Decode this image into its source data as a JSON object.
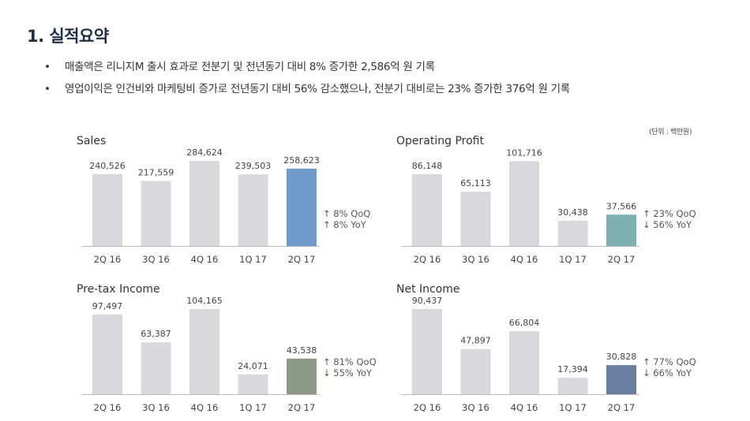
{
  "header": {
    "title": "1. 실적요약",
    "bullets": [
      {
        "marker": "•",
        "text": "매출액은 리니지M 출시 효과로 전분기 및 전년동기 대비 8% 증가한 2,586억 원 기록"
      },
      {
        "marker": "•",
        "text": "영업이익은 인건비와 마케팅비 증가로 전년동기 대비 56% 감소했으나, 전분기 대비로는 23% 증가한 376억 원 기록"
      }
    ],
    "unit_note": "(단위 : 백만원)"
  },
  "chart_data": [
    {
      "type": "bar",
      "title": "Sales",
      "categories": [
        "2Q 16",
        "3Q 16",
        "4Q 16",
        "1Q 17",
        "2Q 17"
      ],
      "values": [
        240526,
        217559,
        284624,
        239503,
        258623
      ],
      "value_labels": [
        "240,526",
        "217,559",
        "284,624",
        "239,503",
        "258,623"
      ],
      "ylim": [
        0,
        290000
      ],
      "highlight_color": "#6d9bcb",
      "bar_color": "#d9d8dc",
      "annotations": [
        "↑ 8% QoQ",
        "↑ 8% YoY"
      ]
    },
    {
      "type": "bar",
      "title": "Operating Profit",
      "categories": [
        "2Q 16",
        "3Q 16",
        "4Q 16",
        "1Q 17",
        "2Q 17"
      ],
      "values": [
        86148,
        65113,
        101716,
        30438,
        37566
      ],
      "value_labels": [
        "86,148",
        "65,113",
        "101,716",
        "30,438",
        "37,566"
      ],
      "ylim": [
        0,
        104000
      ],
      "highlight_color": "#7db0b2",
      "bar_color": "#d9d8dc",
      "annotations": [
        "↑ 23% QoQ",
        "↓ 56% YoY"
      ]
    },
    {
      "type": "bar",
      "title": "Pre-tax Income",
      "categories": [
        "2Q 16",
        "3Q 16",
        "4Q 16",
        "1Q 17",
        "2Q 17"
      ],
      "values": [
        97497,
        63387,
        104165,
        24071,
        43538
      ],
      "value_labels": [
        "97,497",
        "63,387",
        "104,165",
        "24,071",
        "43,538"
      ],
      "ylim": [
        0,
        106000
      ],
      "highlight_color": "#8a9a86",
      "bar_color": "#d9d8dc",
      "annotations": [
        "↑ 81% QoQ",
        "↓ 55% YoY"
      ]
    },
    {
      "type": "bar",
      "title": "Net Income",
      "categories": [
        "2Q 16",
        "3Q 16",
        "4Q 16",
        "1Q 17",
        "2Q 17"
      ],
      "values": [
        90437,
        47897,
        66804,
        17394,
        30828
      ],
      "value_labels": [
        "90,437",
        "47,897",
        "66,804",
        "17,394",
        "30,828"
      ],
      "ylim": [
        0,
        92000
      ],
      "highlight_color": "#6a80a2",
      "bar_color": "#d9d8dc",
      "annotations": [
        "↑ 77% QoQ",
        "↓ 66% YoY"
      ]
    }
  ]
}
